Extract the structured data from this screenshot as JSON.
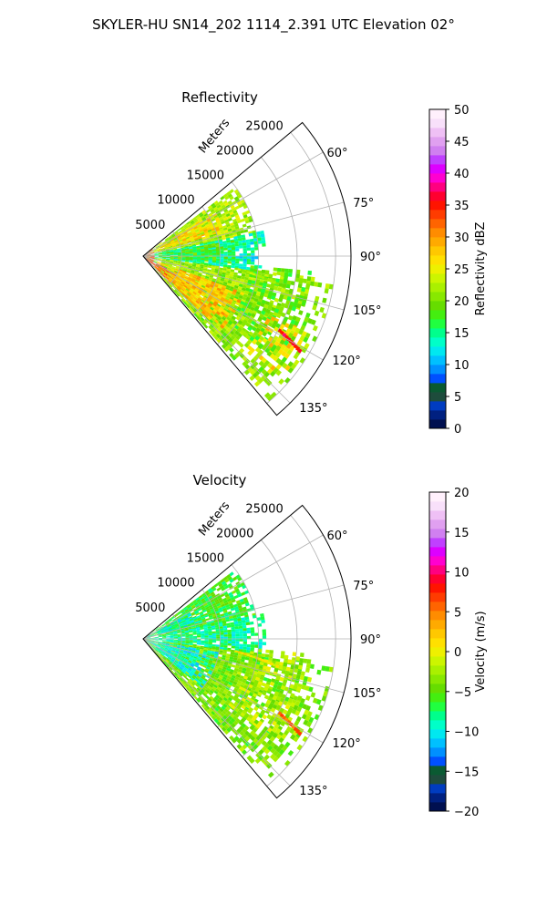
{
  "figure": {
    "suptitle": "SKYLER-HU  SN14_202  1114_2.391 UTC Elevation 02°"
  },
  "chart_data": [
    {
      "type": "heatmap",
      "projection": "polar-sector",
      "title": "Reflectivity",
      "range_label": "Meters",
      "theta_range_deg": [
        50,
        140
      ],
      "r_max": 27000,
      "r_ticks": [
        5000,
        10000,
        15000,
        20000,
        25000
      ],
      "r_tick_labels": [
        "5000",
        "10000",
        "15000",
        "20000",
        "25000"
      ],
      "theta_ticks": [
        60,
        75,
        90,
        105,
        120,
        135
      ],
      "theta_tick_labels": [
        "60°",
        "75°",
        "90°",
        "105°",
        "120°",
        "135°"
      ],
      "grid": true,
      "colorbar": {
        "label": "Reflectivity dBZ",
        "range": [
          0,
          50
        ],
        "ticks": [
          0,
          5,
          10,
          15,
          20,
          25,
          30,
          35,
          40,
          45,
          50
        ],
        "tick_labels": [
          "0",
          "5",
          "10",
          "15",
          "20",
          "25",
          "30",
          "35",
          "40",
          "45",
          "50"
        ],
        "colors": [
          "#001050",
          "#002080",
          "#003cc0",
          "#1e4c3c",
          "#0a5a32",
          "#0050ff",
          "#0090ff",
          "#00c0ff",
          "#00e8f0",
          "#00ffc8",
          "#00ff8c",
          "#20ff40",
          "#44ee10",
          "#66dd00",
          "#88e800",
          "#aaf000",
          "#ccf500",
          "#eef000",
          "#ffe000",
          "#ffc800",
          "#ffaa00",
          "#ff8c00",
          "#ff6400",
          "#ff3c00",
          "#ff1400",
          "#ff0030",
          "#ff0080",
          "#ff00d0",
          "#dd00ff",
          "#c040ff",
          "#d080f0",
          "#e0a0f0",
          "#efc0f5",
          "#f8e0fa",
          "#fff0fc"
        ]
      },
      "echo_regions": [
        {
          "theta": [
            53,
            78
          ],
          "r": [
            0,
            15000
          ],
          "value": 22
        },
        {
          "theta": [
            58,
            72
          ],
          "r": [
            2000,
            11000
          ],
          "value": 27
        },
        {
          "theta": [
            78,
            97
          ],
          "r": [
            0,
            16000
          ],
          "value": 14
        },
        {
          "theta": [
            80,
            94
          ],
          "r": [
            2000,
            12000
          ],
          "value": 18
        },
        {
          "theta": [
            97,
            138
          ],
          "r": [
            0,
            25000
          ],
          "value": 21
        },
        {
          "theta": [
            110,
            134
          ],
          "r": [
            2000,
            14000
          ],
          "value": 28
        },
        {
          "theta": [
            112,
            132
          ],
          "r": [
            18000,
            24000
          ],
          "value": 27
        },
        {
          "theta": [
            95,
            128
          ],
          "r": [
            14000,
            22000
          ],
          "value": 19
        },
        {
          "theta": [
            50,
            140
          ],
          "r": [
            0,
            1500
          ],
          "value": 33
        },
        {
          "theta": [
            118,
            135
          ],
          "r": [
            0,
            5000
          ],
          "value": 35
        }
      ],
      "line_features": [
        {
          "theta": 97,
          "r": [
            12000,
            18000
          ],
          "value": 22
        },
        {
          "theta": 118,
          "r": [
            20000,
            24000
          ],
          "value": 36
        }
      ]
    },
    {
      "type": "heatmap",
      "projection": "polar-sector",
      "title": "Velocity",
      "range_label": "Meters",
      "theta_range_deg": [
        50,
        140
      ],
      "r_max": 27000,
      "r_ticks": [
        5000,
        10000,
        15000,
        20000,
        25000
      ],
      "r_tick_labels": [
        "5000",
        "10000",
        "15000",
        "20000",
        "25000"
      ],
      "theta_ticks": [
        60,
        75,
        90,
        105,
        120,
        135
      ],
      "theta_tick_labels": [
        "60°",
        "75°",
        "90°",
        "105°",
        "120°",
        "135°"
      ],
      "grid": true,
      "colorbar": {
        "label": "Velocity (m/s)",
        "range": [
          -20,
          20
        ],
        "ticks": [
          -20,
          -15,
          -10,
          -5,
          0,
          5,
          10,
          15,
          20
        ],
        "tick_labels": [
          "−20",
          "−15",
          "−10",
          "−5",
          "0",
          "5",
          "10",
          "15",
          "20"
        ],
        "colors": [
          "#001050",
          "#002080",
          "#003cc0",
          "#1e4c3c",
          "#0a5a32",
          "#0050ff",
          "#0090ff",
          "#00c0ff",
          "#00e8f0",
          "#00ffc8",
          "#00ff8c",
          "#20ff40",
          "#44ee10",
          "#66dd00",
          "#88e800",
          "#aaf000",
          "#ccf500",
          "#eef000",
          "#ffe000",
          "#ffc800",
          "#ffaa00",
          "#ff8c00",
          "#ff6400",
          "#ff3c00",
          "#ff1400",
          "#ff0030",
          "#ff0080",
          "#ff00d0",
          "#dd00ff",
          "#c040ff",
          "#d080f0",
          "#e0a0f0",
          "#efc0f5",
          "#f8e0fa",
          "#fff0fc"
        ]
      },
      "echo_regions": [
        {
          "theta": [
            53,
            78
          ],
          "r": [
            0,
            15000
          ],
          "value": -6
        },
        {
          "theta": [
            60,
            74
          ],
          "r": [
            0,
            8000
          ],
          "value": -9
        },
        {
          "theta": [
            78,
            97
          ],
          "r": [
            0,
            16000
          ],
          "value": -8
        },
        {
          "theta": [
            97,
            138
          ],
          "r": [
            0,
            25000
          ],
          "value": -4
        },
        {
          "theta": [
            100,
            130
          ],
          "r": [
            0,
            10000
          ],
          "value": -9
        },
        {
          "theta": [
            112,
            132
          ],
          "r": [
            18000,
            24000
          ],
          "value": -3
        },
        {
          "theta": [
            95,
            128
          ],
          "r": [
            14000,
            22000
          ],
          "value": -2
        }
      ],
      "line_features": [
        {
          "theta": 97,
          "r": [
            12000,
            18000
          ],
          "value": 1
        },
        {
          "theta": 118,
          "r": [
            20000,
            24000
          ],
          "value": 6
        }
      ]
    }
  ]
}
